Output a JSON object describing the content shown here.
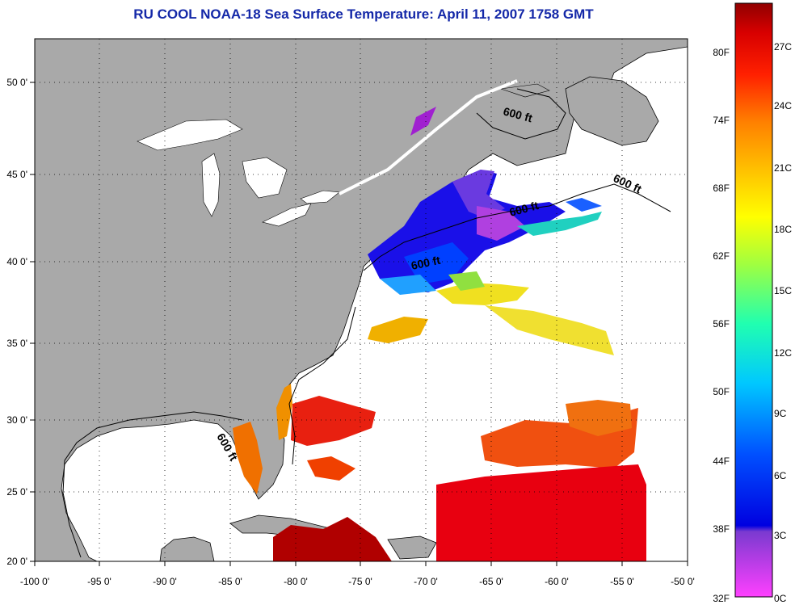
{
  "title": "RU COOL  NOAA-18  Sea Surface Temperature:  April 11, 2007 1758 GMT",
  "map": {
    "lon_ticks": [
      "-100 0'",
      "-95 0'",
      "-90 0'",
      "-85 0'",
      "-80 0'",
      "-75 0'",
      "-70 0'",
      "-65 0'",
      "-60 0'",
      "-55 0'",
      "-50 0'"
    ],
    "lat_ticks": [
      "50 0'",
      "45 0'",
      "40 0'",
      "35 0'",
      "30 0'",
      "25 0'",
      "20 0'"
    ],
    "isobath_label": "600 ft",
    "colors": {
      "land": "#a9a9a9",
      "ocean": "#ffffff",
      "title": "#1428a8"
    }
  },
  "colorbar": {
    "fahrenheit_labels": [
      "80F",
      "74F",
      "68F",
      "62F",
      "56F",
      "50F",
      "44F",
      "38F",
      "32F"
    ],
    "celsius_labels": [
      "27C",
      "24C",
      "21C",
      "18C",
      "15C",
      "12C",
      "9C",
      "6C",
      "3C",
      "0C"
    ]
  }
}
